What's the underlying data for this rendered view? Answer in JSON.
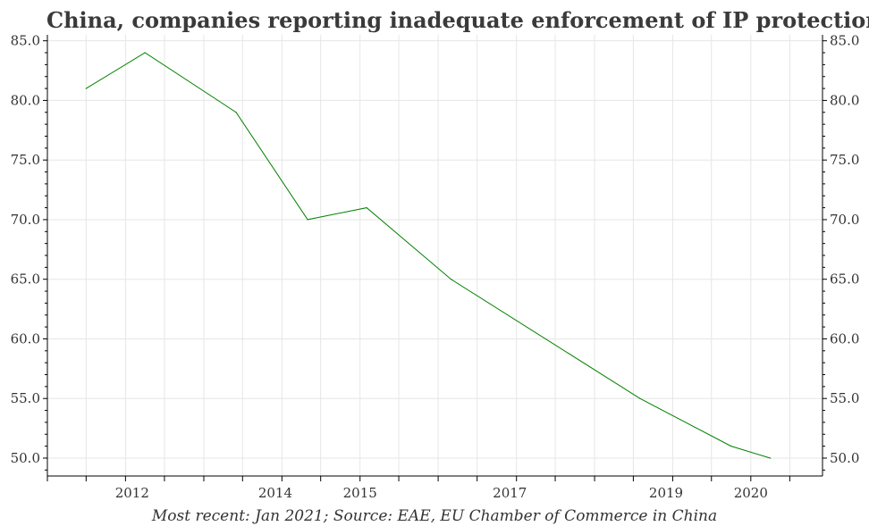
{
  "chart_data": {
    "type": "line",
    "title": "China, companies reporting inadequate enforcement of IP protection, %",
    "source": "Most recent: Jan 2021; Source: EAE, EU Chamber of Commerce in China",
    "x_tick_labels": [
      "2012",
      "2014",
      "2015",
      "2017",
      "2019",
      "2020"
    ],
    "y_ticks": [
      "50.0",
      "55.0",
      "60.0",
      "65.0",
      "70.0",
      "75.0",
      "80.0",
      "85.0"
    ],
    "ylim": [
      48.5,
      85.5
    ],
    "grid": true,
    "series": [
      {
        "color": "#008000",
        "x": [
          "2011-07",
          "2012-04",
          "2013-06",
          "2014-05",
          "2015-02",
          "2016-03",
          "2018-08",
          "2019-10",
          "2020-04"
        ],
        "values": [
          81,
          84,
          79,
          70,
          71,
          65,
          55,
          51,
          50
        ]
      }
    ]
  }
}
